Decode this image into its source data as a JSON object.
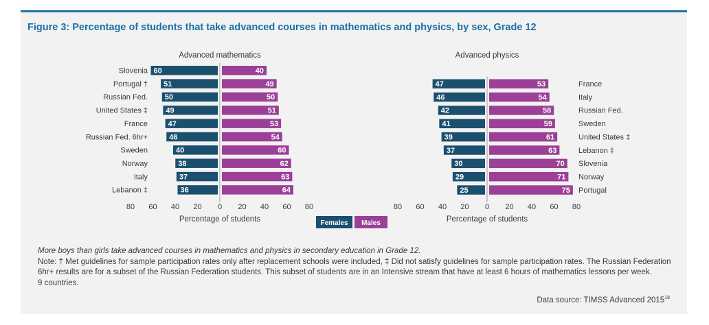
{
  "title": "Figure 3:  Percentage of students that take advanced courses in mathematics and physics, by sex, Grade 12",
  "legend": {
    "females": "Females",
    "males": "Males"
  },
  "colors": {
    "females": "#1a4f6e",
    "males": "#9b3f97",
    "title": "#1a6fa3"
  },
  "chart_data": [
    {
      "type": "bar",
      "orientation": "diverging-horizontal",
      "title": "Advanced mathematics",
      "xlabel": "Percentage of students",
      "xlim": [
        -80,
        80
      ],
      "ticks": [
        "80",
        "60",
        "40",
        "20",
        "0",
        "20",
        "40",
        "60",
        "80"
      ],
      "categories": [
        "Slovenia",
        "Portugal †",
        "Russian Fed.",
        "United States ‡",
        "France",
        "Russian Fed. 6hr+",
        "Sweden",
        "Norway",
        "Italy",
        "Lebanon ‡"
      ],
      "series": [
        {
          "name": "Females",
          "values": [
            60,
            51,
            50,
            49,
            47,
            46,
            40,
            38,
            37,
            36
          ]
        },
        {
          "name": "Males",
          "values": [
            40,
            49,
            50,
            51,
            53,
            54,
            60,
            62,
            63,
            64
          ]
        }
      ],
      "label_side": "left"
    },
    {
      "type": "bar",
      "orientation": "diverging-horizontal",
      "title": "Advanced physics",
      "xlabel": "Percentage of students",
      "xlim": [
        -80,
        80
      ],
      "ticks": [
        "80",
        "60",
        "40",
        "20",
        "0",
        "20",
        "40",
        "60",
        "80"
      ],
      "categories": [
        "France",
        "Italy",
        "Russian Fed.",
        "Sweden",
        "United States ‡",
        "Lebanon ‡",
        "Slovenia",
        "Norway",
        "Portugal"
      ],
      "series": [
        {
          "name": "Females",
          "values": [
            47,
            46,
            42,
            41,
            39,
            37,
            30,
            29,
            25
          ]
        },
        {
          "name": "Males",
          "values": [
            53,
            54,
            58,
            59,
            61,
            63,
            70,
            71,
            75
          ]
        }
      ],
      "label_side": "right"
    }
  ],
  "caption": {
    "italic": "More boys than girls take advanced courses in mathematics and physics in secondary education in Grade 12.",
    "note": "Note: † Met guidelines for sample participation rates only after replacement schools were included, ‡ Did not satisfy guidelines for sample participation rates. The Russian Federation 6hr+ results are for a subset of the Russian Federation students. This subset of students are in an Intensive stream that have at least 6 hours of mathematics lessons per week.",
    "count": "9 countries."
  },
  "source": {
    "text": "Data source: TIMSS Advanced 2015",
    "superscript": "18"
  }
}
